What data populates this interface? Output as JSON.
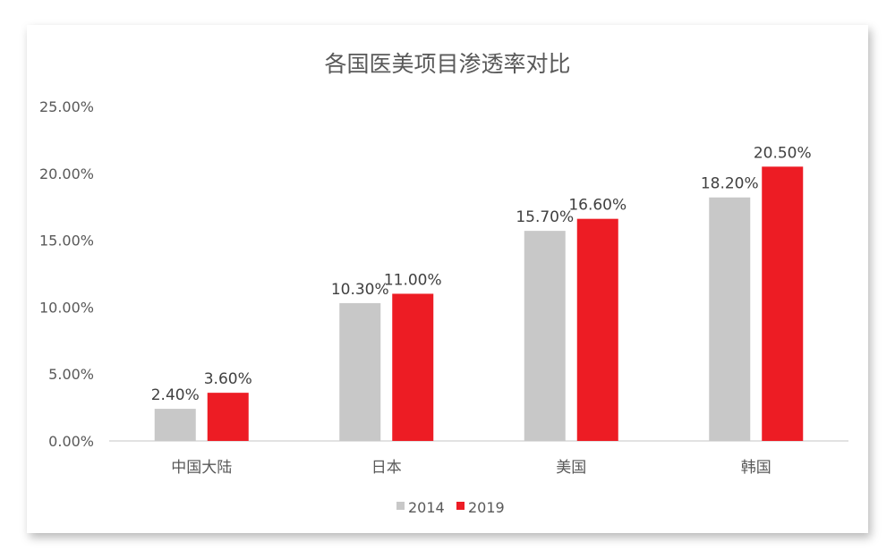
{
  "chart_data": {
    "type": "bar",
    "title": "各国医美项目渗透率对比",
    "xlabel": "",
    "ylabel": "",
    "categories": [
      "中国大陆",
      "日本",
      "美国",
      "韩国"
    ],
    "series": [
      {
        "name": "2014",
        "values": [
          2.4,
          10.3,
          15.7,
          18.2
        ],
        "labels": [
          "2.40%",
          "10.30%",
          "15.70%",
          "18.20%"
        ],
        "color": "#c8c8c8"
      },
      {
        "name": "2019",
        "values": [
          3.6,
          11.0,
          16.6,
          20.5
        ],
        "labels": [
          "3.60%",
          "11.00%",
          "16.60%",
          "20.50%"
        ],
        "color": "#ed1c24"
      }
    ],
    "ylim": [
      0,
      25
    ],
    "yticks": [
      "0.00%",
      "5.00%",
      "10.00%",
      "15.00%",
      "20.00%",
      "25.00%"
    ],
    "grid": false,
    "legend_position": "bottom"
  }
}
